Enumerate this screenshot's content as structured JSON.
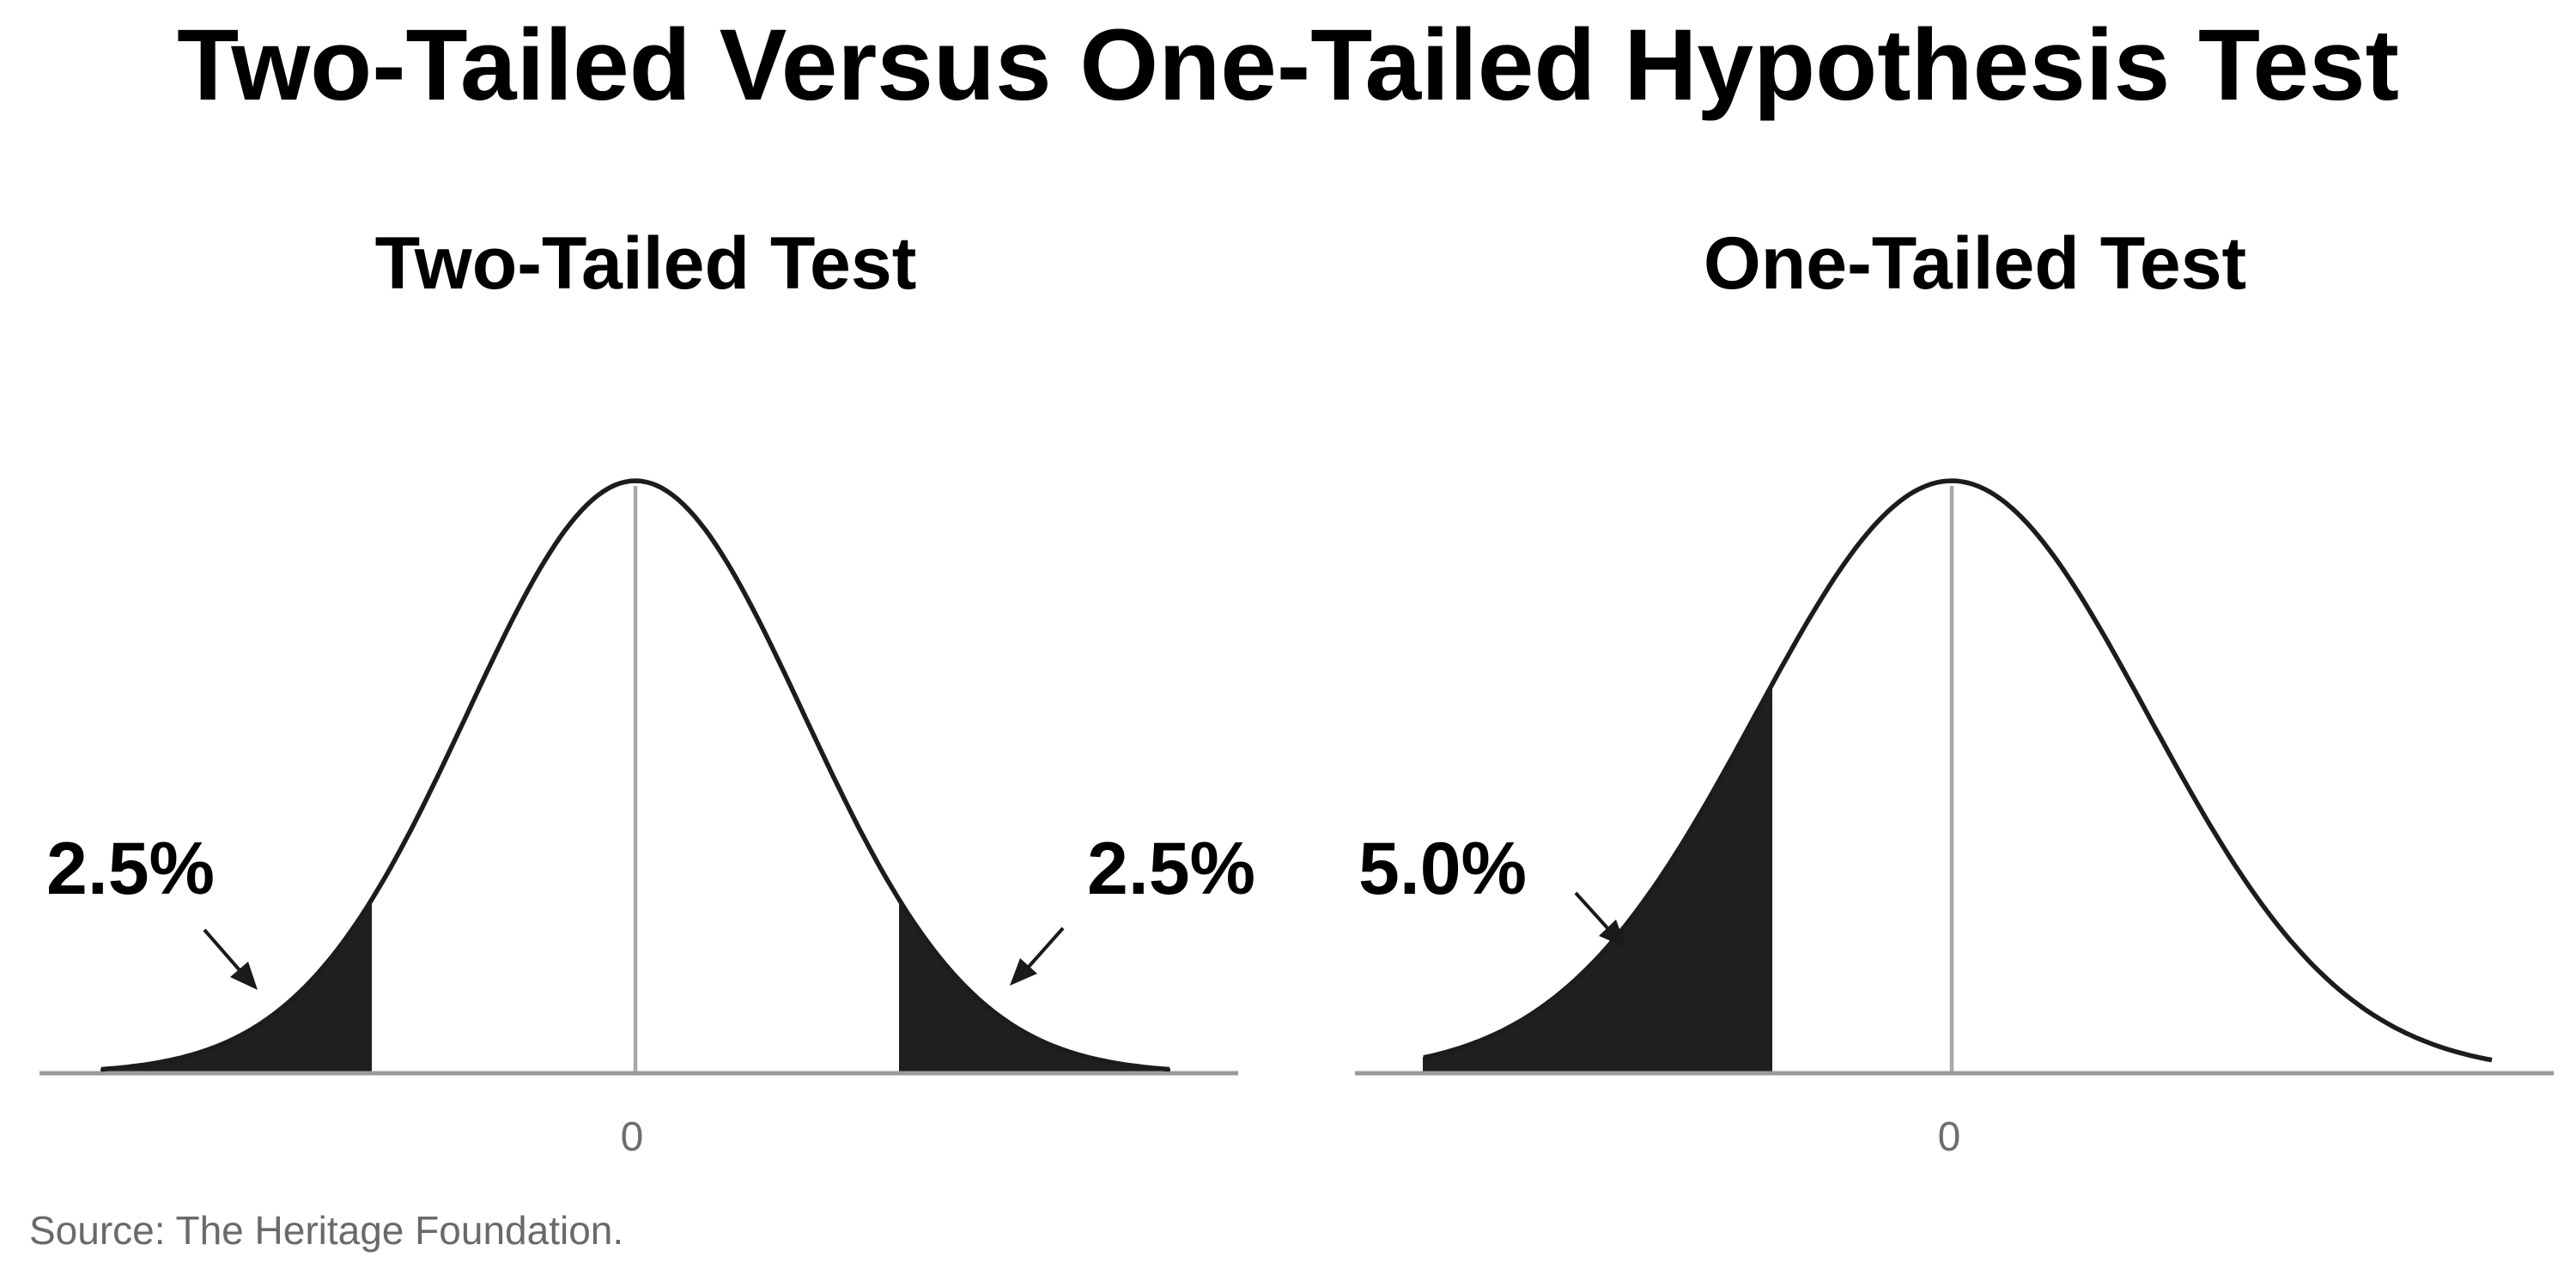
{
  "title": "Two-Tailed Versus One-Tailed Hypothesis Test",
  "panels": [
    {
      "title": "Two-Tailed Test",
      "center_label": "0",
      "shaded_tails": [
        "left",
        "right"
      ],
      "labels": [
        "2.5%",
        "2.5%"
      ]
    },
    {
      "title": "One-Tailed Test",
      "center_label": "0",
      "shaded_tails": [
        "left"
      ],
      "labels": [
        "5.0%"
      ]
    }
  ],
  "source": "Source: The Heritage Foundation.",
  "colors": {
    "tail_fill": "#1f1f1f",
    "curve": "#1c1c1c",
    "axis": "#9a9a9a",
    "source_text": "#6a6a6a"
  }
}
